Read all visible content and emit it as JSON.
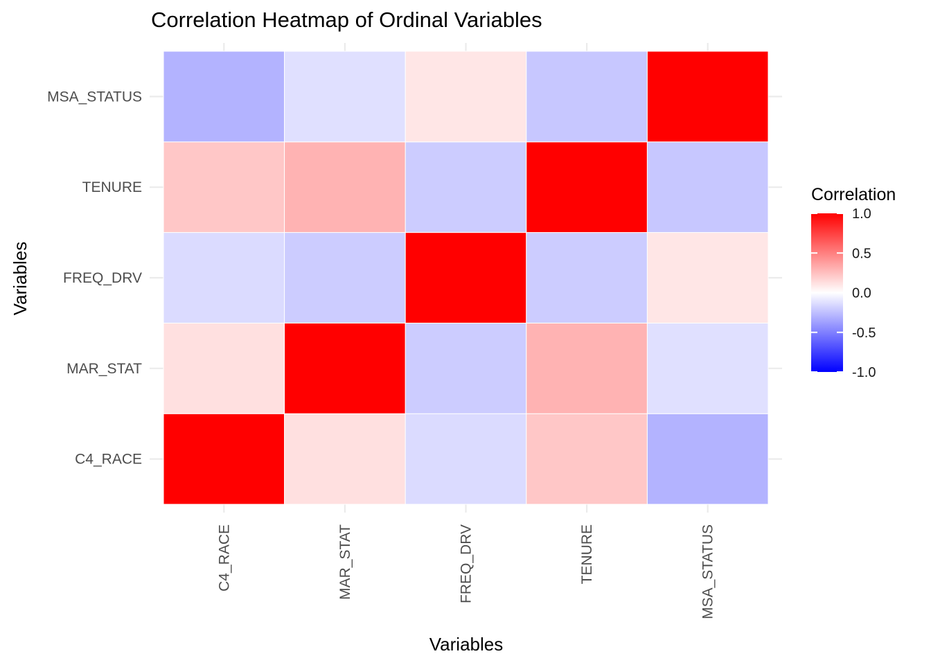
{
  "chart_data": {
    "type": "heatmap",
    "title": "Correlation Heatmap of Ordinal Variables",
    "xlabel": "Variables",
    "ylabel": "Variables",
    "x_categories": [
      "C4_RACE",
      "MAR_STAT",
      "FREQ_DRV",
      "TENURE",
      "MSA_STATUS"
    ],
    "y_categories": [
      "C4_RACE",
      "MAR_STAT",
      "FREQ_DRV",
      "TENURE",
      "MSA_STATUS"
    ],
    "values": [
      [
        1.0,
        0.12,
        -0.14,
        0.22,
        -0.3
      ],
      [
        0.12,
        1.0,
        -0.2,
        0.3,
        -0.12
      ],
      [
        -0.14,
        -0.2,
        1.0,
        -0.2,
        0.1
      ],
      [
        0.22,
        0.3,
        -0.2,
        1.0,
        -0.22
      ],
      [
        -0.3,
        -0.12,
        0.1,
        -0.22,
        1.0
      ]
    ],
    "value_range": [
      -1.0,
      1.0
    ],
    "colors": {
      "low": "#0000ff",
      "mid": "#ffffff",
      "high": "#ff0000"
    },
    "legend": {
      "title": "Correlation",
      "position": "right",
      "ticks": [
        1.0,
        0.5,
        0.0,
        -0.5,
        -1.0
      ],
      "tick_labels": [
        "1.0",
        "0.5",
        "0.0",
        "-0.5",
        "-1.0"
      ]
    },
    "grid": true
  }
}
